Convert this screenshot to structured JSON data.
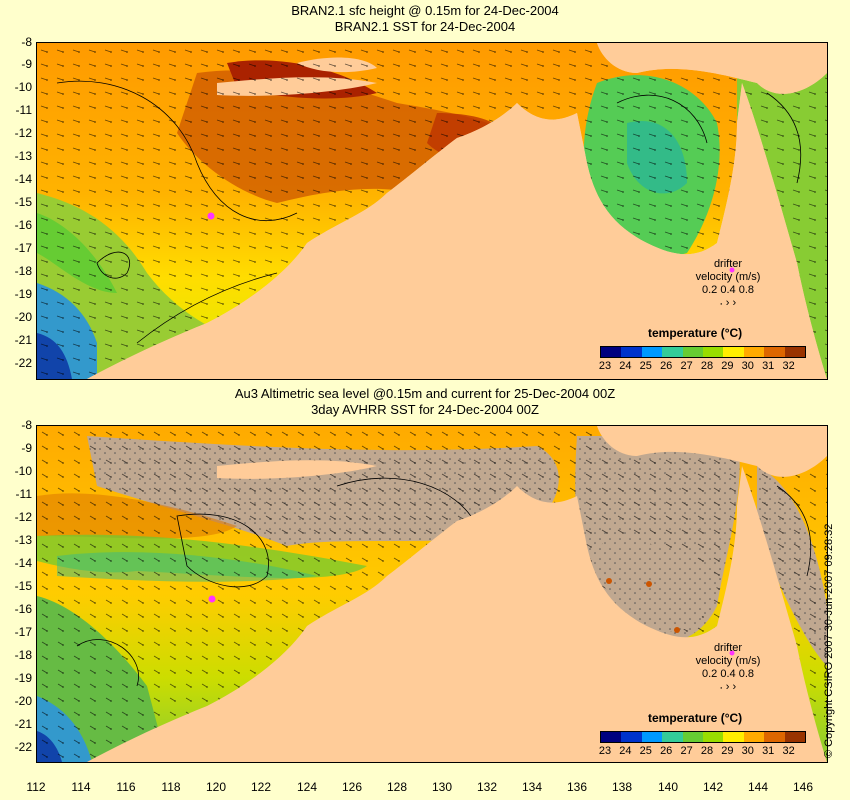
{
  "titles": {
    "top_line1": "BRAN2.1 sfc height @ 0.15m for 24-Dec-2004",
    "top_line2": "BRAN2.1 SST for 24-Dec-2004",
    "bottom_line1": "Au3 Altimetric sea level  @0.15m and current for 25-Dec-2004 00Z",
    "bottom_line2": "3day AVHRR SST for 24-Dec-2004 00Z"
  },
  "axes": {
    "lon_ticks": [
      "112",
      "114",
      "116",
      "118",
      "120",
      "122",
      "124",
      "126",
      "128",
      "130",
      "132",
      "134",
      "136",
      "138",
      "140",
      "142",
      "144",
      "146"
    ],
    "lat_ticks": [
      "-8",
      "-9",
      "-10",
      "-11",
      "-12",
      "-13",
      "-14",
      "-15",
      "-16",
      "-17",
      "-18",
      "-19",
      "-20",
      "-21",
      "-22"
    ],
    "lon_range": [
      112,
      147
    ],
    "lat_range": [
      -22.5,
      -8
    ]
  },
  "colorbar": {
    "title": "temperature (°C)",
    "labels": [
      "23",
      "24",
      "25",
      "26",
      "27",
      "28",
      "29",
      "30",
      "31",
      "32"
    ],
    "colors": [
      "#00007f",
      "#0033cc",
      "#0099ff",
      "#33cc99",
      "#66cc33",
      "#99dd00",
      "#ffee00",
      "#ffaa00",
      "#dd6600",
      "#993300"
    ]
  },
  "drifter_legend": {
    "line1": "drifter",
    "line2": "velocity (m/s)",
    "values": "0.2  0.4  0.8"
  },
  "copyright": "© Copyright CSIRO 2007   30-Jun-2007 09:28:32",
  "colors": {
    "land": "#ffcc99",
    "no_data": "#c0a890",
    "background": "#ffffcc",
    "drifter_marker": "#ff33ff"
  }
}
